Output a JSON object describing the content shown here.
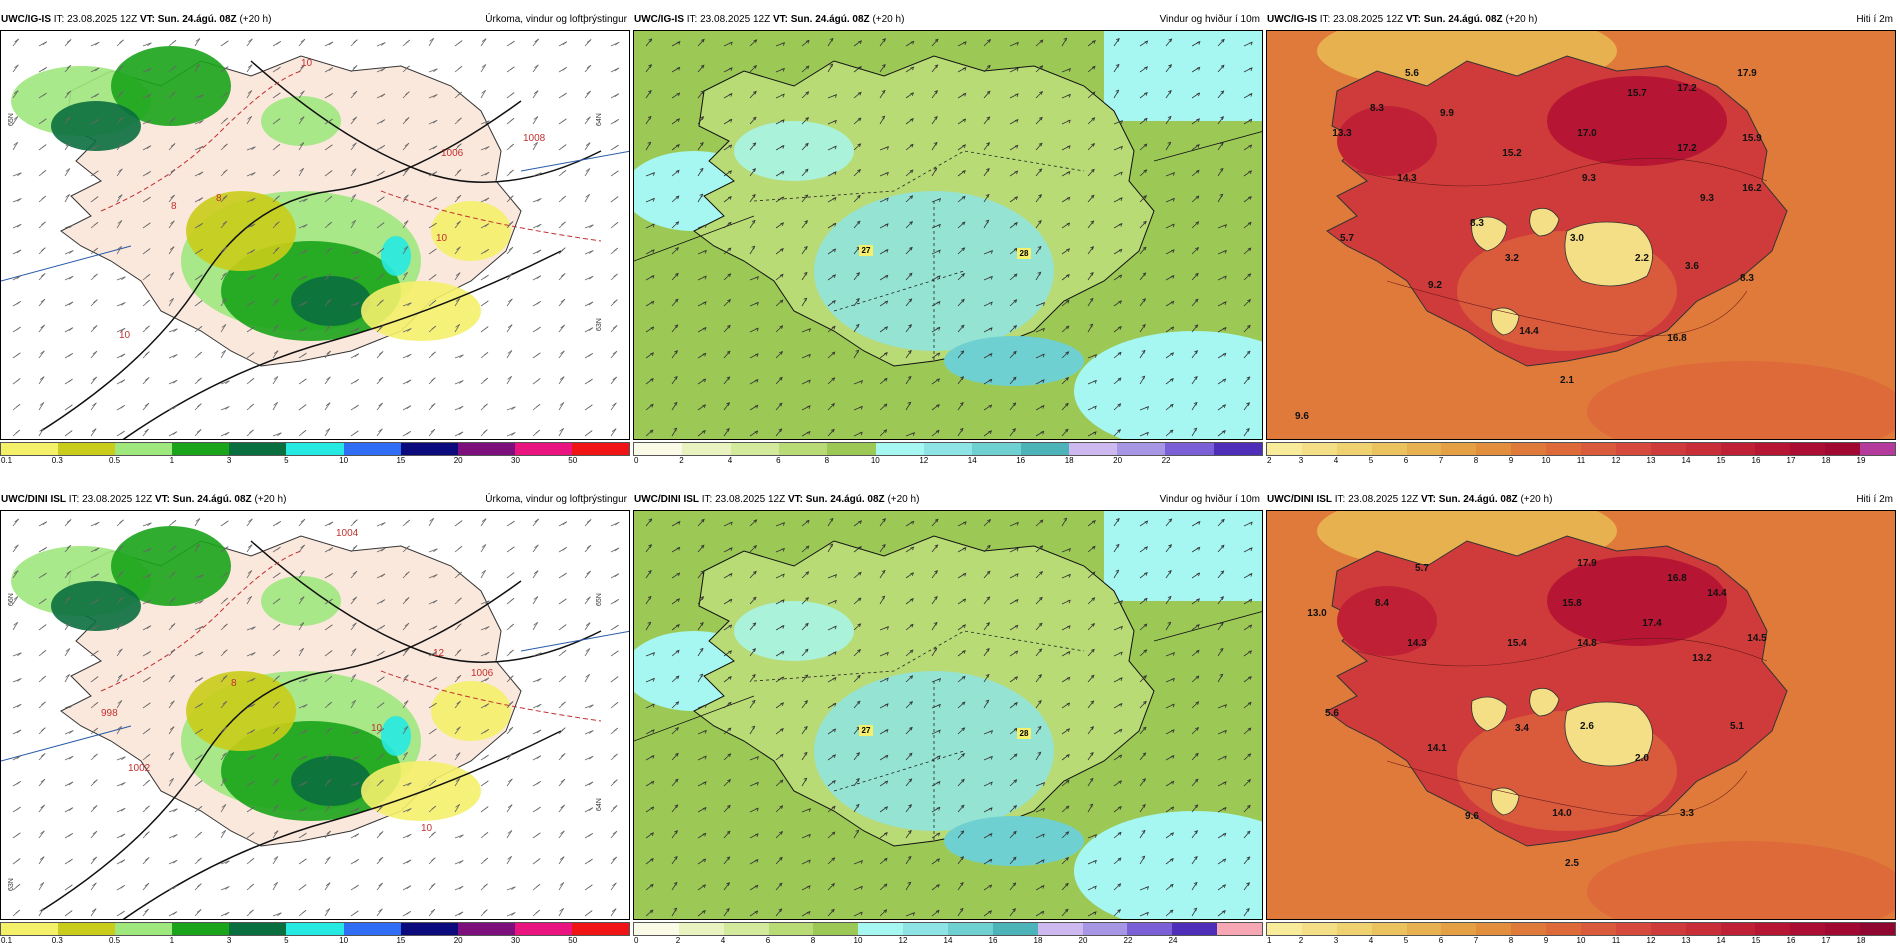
{
  "panels": [
    {
      "id": "p1",
      "model": "UWC/IG-IS",
      "it_label": "IT:",
      "it_value": "23.08.2025 12Z",
      "vt_label": "VT:",
      "vt_value": "Sun. 24.ágú. 08Z",
      "lead": "(+20 h)",
      "product": "Úrkoma, vindur og loftþrýstingur",
      "legend_ticks": [
        "0.1",
        "0.3",
        "0.5",
        "1",
        "3",
        "5",
        "10",
        "15",
        "20",
        "30",
        "50"
      ],
      "legend_colors": [
        "#f4f06a",
        "#c9cc1a",
        "#9fe87e",
        "#19a419",
        "#0a6f3f",
        "#26e9e2",
        "#2f6df5",
        "#0b0b7d",
        "#7d0f7d",
        "#e9147f",
        "#f01414"
      ],
      "labels": [
        {
          "t": "10"
        },
        {
          "t": "1008"
        },
        {
          "t": "1006"
        },
        {
          "t": "10"
        },
        {
          "t": "8"
        },
        {
          "t": "8"
        },
        {
          "t": "10"
        }
      ],
      "lats": [
        "65N",
        "64N",
        "63N"
      ]
    },
    {
      "id": "p2",
      "model": "UWC/IG-IS",
      "it_label": "IT:",
      "it_value": "23.08.2025 12Z",
      "vt_label": "VT:",
      "vt_value": "Sun. 24.ágú. 08Z",
      "lead": "(+20 h)",
      "product": "Vindur og hviður í 10m",
      "legend_ticks": [
        "0",
        "2",
        "4",
        "6",
        "8",
        "10",
        "12",
        "14",
        "16",
        "18",
        "20",
        "22"
      ],
      "legend_colors": [
        "#fafae6",
        "#e9f3c0",
        "#d3ea9c",
        "#b9db76",
        "#9cc956",
        "#a6f7f2",
        "#8ee4e4",
        "#6fd0d2",
        "#4cb4b8",
        "#cdb8f0",
        "#a795e6",
        "#7a5fd6",
        "#4e2eb8"
      ],
      "gusts": [
        "27",
        "28"
      ]
    },
    {
      "id": "p3",
      "model": "UWC/IG-IS",
      "it_label": "IT:",
      "it_value": "23.08.2025 12Z",
      "vt_label": "VT:",
      "vt_value": "Sun. 24.ágú. 08Z",
      "lead": "(+20 h)",
      "product": "Hiti í 2m",
      "legend_ticks": [
        "2",
        "3",
        "4",
        "5",
        "6",
        "7",
        "8",
        "9",
        "10",
        "11",
        "12",
        "13",
        "14",
        "15",
        "16",
        "17",
        "18",
        "19"
      ],
      "legend_colors": [
        "#f8ec9a",
        "#f4df86",
        "#efd170",
        "#eac25e",
        "#e6b14e",
        "#e4a042",
        "#e28e3c",
        "#e07a3a",
        "#de6a3a",
        "#da5a3c",
        "#d54a3c",
        "#cf3b3a",
        "#c82d38",
        "#c02036",
        "#b71534",
        "#ac0d33",
        "#a00832",
        "#b43a9c"
      ],
      "temps": [
        "5.6",
        "8.3",
        "9.9",
        "13.3",
        "15.7",
        "17.2",
        "17.9",
        "17.0",
        "15.2",
        "17.2",
        "15.9",
        "14.3",
        "9.3",
        "16.2",
        "9.3",
        "8.3",
        "5.7",
        "3.2",
        "3.0",
        "2.2",
        "3.6",
        "8.3",
        "9.2",
        "14.4",
        "16.8",
        "2.1",
        "9.6"
      ]
    },
    {
      "id": "p4",
      "model": "UWC/DINI ISL",
      "it_label": "IT:",
      "it_value": "23.08.2025 12Z",
      "vt_label": "VT:",
      "vt_value": "Sun. 24.ágú. 08Z",
      "lead": "(+20 h)",
      "product": "Úrkoma, vindur og loftþrýstingur",
      "legend_ticks": [
        "0.1",
        "0.3",
        "0.5",
        "1",
        "3",
        "5",
        "10",
        "15",
        "20",
        "30",
        "50"
      ],
      "legend_colors": [
        "#f4f06a",
        "#c9cc1a",
        "#9fe87e",
        "#19a419",
        "#0a6f3f",
        "#26e9e2",
        "#2f6df5",
        "#0b0b7d",
        "#7d0f7d",
        "#e9147f",
        "#f01414"
      ],
      "labels": [
        {
          "t": "1004"
        },
        {
          "t": "12"
        },
        {
          "t": "1006"
        },
        {
          "t": "998"
        },
        {
          "t": "1002"
        },
        {
          "t": "10"
        },
        {
          "t": "10"
        },
        {
          "t": "8"
        }
      ],
      "lats": [
        "66N",
        "65N",
        "64N",
        "63N"
      ]
    },
    {
      "id": "p5",
      "model": "UWC/DINI ISL",
      "it_label": "IT:",
      "it_value": "23.08.2025 12Z",
      "vt_label": "VT:",
      "vt_value": "Sun. 24.ágú. 08Z",
      "lead": "(+20 h)",
      "product": "Vindur og hviður í 10m",
      "legend_ticks": [
        "0",
        "2",
        "4",
        "6",
        "8",
        "10",
        "12",
        "14",
        "16",
        "18",
        "20",
        "22",
        "24"
      ],
      "legend_colors": [
        "#fafae6",
        "#e9f3c0",
        "#d3ea9c",
        "#b9db76",
        "#9cc956",
        "#a6f7f2",
        "#8ee4e4",
        "#6fd0d2",
        "#4cb4b8",
        "#cdb8f0",
        "#a795e6",
        "#7a5fd6",
        "#4e2eb8",
        "#f7a6b4"
      ],
      "gusts": [
        "27",
        "28"
      ]
    },
    {
      "id": "p6",
      "model": "UWC/DINI ISL",
      "it_label": "IT:",
      "it_value": "23.08.2025 12Z",
      "vt_label": "VT:",
      "vt_value": "Sun. 24.ágú. 08Z",
      "lead": "(+20 h)",
      "product": "Hiti í 2m",
      "legend_ticks": [
        "1",
        "2",
        "3",
        "4",
        "5",
        "6",
        "7",
        "8",
        "9",
        "10",
        "11",
        "12",
        "13",
        "14",
        "15",
        "16",
        "17",
        "18"
      ],
      "legend_colors": [
        "#f8ec9a",
        "#f4df86",
        "#efd170",
        "#eac25e",
        "#e6b14e",
        "#e4a042",
        "#e28e3c",
        "#e07a3a",
        "#de6a3a",
        "#da5a3c",
        "#d54a3c",
        "#cf3b3a",
        "#c82d38",
        "#c02036",
        "#b71534",
        "#ac0d33",
        "#a00832",
        "#8f0630"
      ],
      "temps": [
        "5.7",
        "17.9",
        "16.8",
        "8.4",
        "13.0",
        "15.8",
        "14.4",
        "14.3",
        "15.4",
        "14.8",
        "17.4",
        "14.5",
        "13.2",
        "5.6",
        "3.4",
        "2.6",
        "5.1",
        "14.1",
        "2.0",
        "9.6",
        "14.0",
        "3.3",
        "2.5"
      ]
    }
  ]
}
